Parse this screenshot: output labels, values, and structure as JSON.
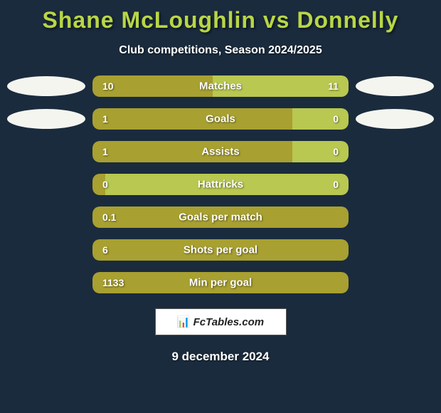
{
  "title": "Shane McLoughlin vs Donnelly",
  "subtitle": "Club competitions, Season 2024/2025",
  "colors": {
    "background": "#1a2b3d",
    "title_color": "#b8d646",
    "bar_left": "#a8a030",
    "bar_right": "#b8c850",
    "ellipse": "#f5f5f0",
    "text": "#ffffff"
  },
  "stats": [
    {
      "label": "Matches",
      "left_value": "10",
      "right_value": "11",
      "left_pct": 47,
      "show_ellipses": true
    },
    {
      "label": "Goals",
      "left_value": "1",
      "right_value": "0",
      "left_pct": 78,
      "show_ellipses": true
    },
    {
      "label": "Assists",
      "left_value": "1",
      "right_value": "0",
      "left_pct": 78,
      "show_ellipses": false
    },
    {
      "label": "Hattricks",
      "left_value": "0",
      "right_value": "0",
      "left_pct": 5,
      "show_ellipses": false
    },
    {
      "label": "Goals per match",
      "left_value": "0.1",
      "right_value": "",
      "left_pct": 100,
      "show_ellipses": false
    },
    {
      "label": "Shots per goal",
      "left_value": "6",
      "right_value": "",
      "left_pct": 100,
      "show_ellipses": false
    },
    {
      "label": "Min per goal",
      "left_value": "1133",
      "right_value": "",
      "left_pct": 100,
      "show_ellipses": false
    }
  ],
  "branding": {
    "icon": "📊",
    "text": "FcTables.com"
  },
  "date": "9 december 2024"
}
